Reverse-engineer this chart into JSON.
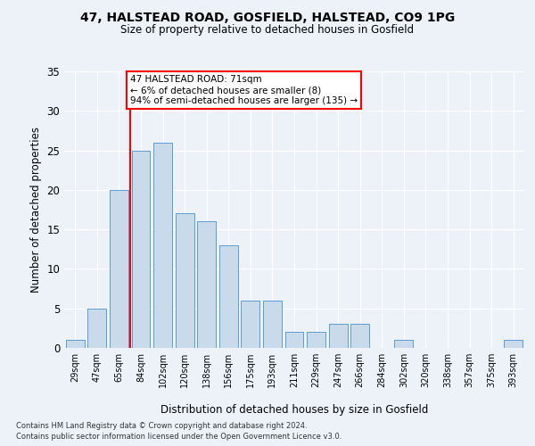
{
  "title1": "47, HALSTEAD ROAD, GOSFIELD, HALSTEAD, CO9 1PG",
  "title2": "Size of property relative to detached houses in Gosfield",
  "xlabel": "Distribution of detached houses by size in Gosfield",
  "ylabel": "Number of detached properties",
  "categories": [
    "29sqm",
    "47sqm",
    "65sqm",
    "84sqm",
    "102sqm",
    "120sqm",
    "138sqm",
    "156sqm",
    "175sqm",
    "193sqm",
    "211sqm",
    "229sqm",
    "247sqm",
    "266sqm",
    "284sqm",
    "302sqm",
    "320sqm",
    "338sqm",
    "357sqm",
    "375sqm",
    "393sqm"
  ],
  "values": [
    1,
    5,
    20,
    25,
    26,
    17,
    16,
    13,
    6,
    6,
    2,
    2,
    3,
    3,
    0,
    1,
    0,
    0,
    0,
    0,
    1
  ],
  "bar_color": "#c9daea",
  "bar_edge_color": "#5b9bd5",
  "vline_x_index": 2,
  "vline_color": "red",
  "annotation_text": "47 HALSTEAD ROAD: 71sqm\n← 6% of detached houses are smaller (8)\n94% of semi-detached houses are larger (135) →",
  "annotation_box_color": "white",
  "annotation_box_edge_color": "red",
  "ylim": [
    0,
    35
  ],
  "yticks": [
    0,
    5,
    10,
    15,
    20,
    25,
    30,
    35
  ],
  "footer1": "Contains HM Land Registry data © Crown copyright and database right 2024.",
  "footer2": "Contains public sector information licensed under the Open Government Licence v3.0.",
  "bg_color": "#edf2f9",
  "plot_bg_color": "#edf2f9"
}
